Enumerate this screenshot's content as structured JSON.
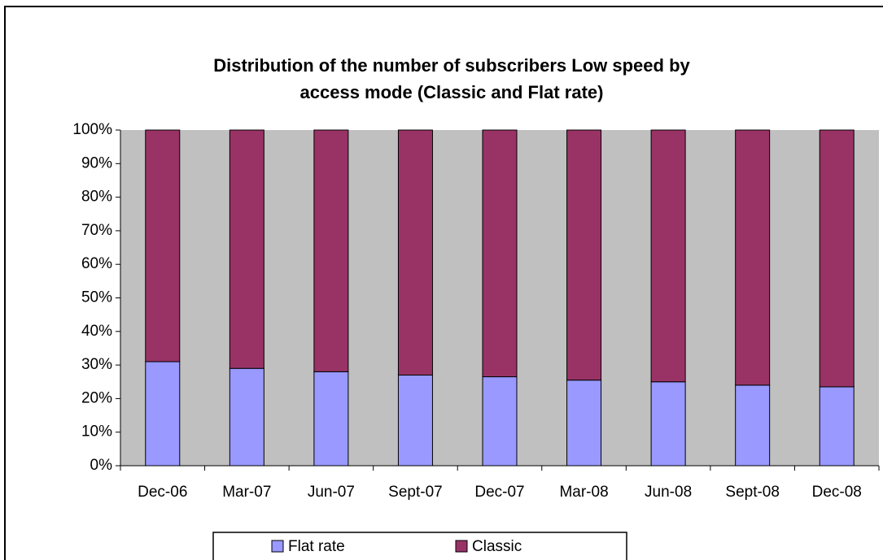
{
  "chart_data": {
    "type": "stacked_bar",
    "title": [
      "Distribution of the number of subscribers Low speed by",
      "access mode (Classic and Flat rate)"
    ],
    "categories": [
      "Dec-06",
      "Mar-07",
      "Jun-07",
      "Sept-07",
      "Dec-07",
      "Mar-08",
      "Jun-08",
      "Sept-08",
      "Dec-08"
    ],
    "series": [
      {
        "name": "Flat rate",
        "color": "#9999ff",
        "values": [
          31,
          29,
          28,
          27,
          26.5,
          25.5,
          25,
          24,
          23.5
        ]
      },
      {
        "name": "Classic",
        "color": "#993366",
        "values": [
          69,
          71,
          72,
          73,
          73.5,
          74.5,
          75,
          76,
          76.5
        ]
      }
    ],
    "ylim": [
      0,
      100
    ],
    "yticks": [
      {
        "value": 0,
        "label": "0%"
      },
      {
        "value": 10,
        "label": "10%"
      },
      {
        "value": 20,
        "label": "20%"
      },
      {
        "value": 30,
        "label": "30%"
      },
      {
        "value": 40,
        "label": "40%"
      },
      {
        "value": 50,
        "label": "50%"
      },
      {
        "value": 60,
        "label": "60%"
      },
      {
        "value": 70,
        "label": "70%"
      },
      {
        "value": 80,
        "label": "80%"
      },
      {
        "value": 90,
        "label": "90%"
      },
      {
        "value": 100,
        "label": "100%"
      }
    ],
    "plot_background": "#c0c0c0",
    "grid": false,
    "legend": "bottom"
  }
}
